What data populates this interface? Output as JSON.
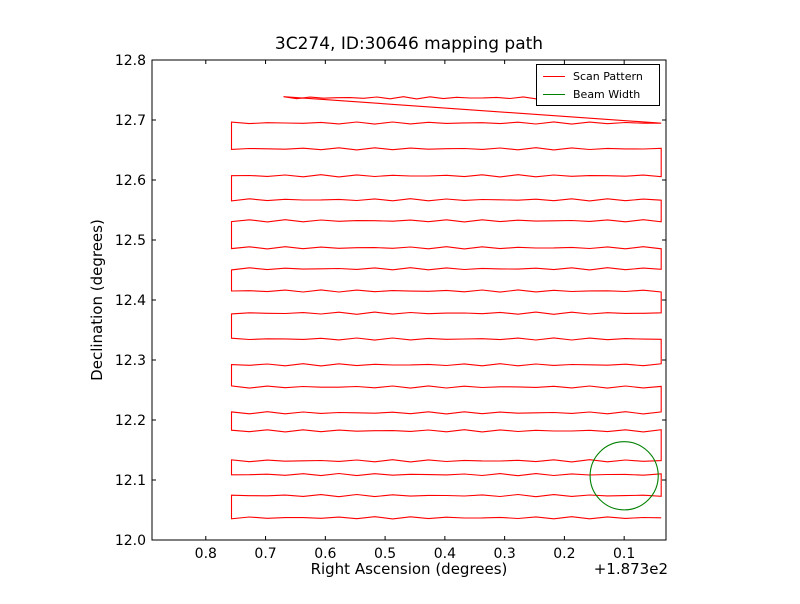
{
  "chart_data": {
    "type": "line",
    "title": "3C274, ID:30646 mapping path",
    "xlabel": "Right Ascension (degrees)",
    "ylabel": "Declination (degrees)",
    "x_offset_text": "+1.873e2",
    "x_axis_inverted": true,
    "xlim": [
      0.89,
      0.03
    ],
    "ylim": [
      12.0,
      12.8
    ],
    "x_ticks": [
      0.8,
      0.7,
      0.6,
      0.5,
      0.4,
      0.3,
      0.2,
      0.1
    ],
    "x_tick_labels": [
      "0.8",
      "0.7",
      "0.6",
      "0.5",
      "0.4",
      "0.3",
      "0.2",
      "0.1"
    ],
    "y_ticks": [
      12.0,
      12.1,
      12.2,
      12.3,
      12.4,
      12.5,
      12.6,
      12.7,
      12.8
    ],
    "y_tick_labels": [
      "12.0",
      "12.1",
      "12.2",
      "12.3",
      "12.4",
      "12.5",
      "12.6",
      "12.7",
      "12.8"
    ],
    "grid": false,
    "legend": {
      "placement": "top-right",
      "entries": [
        "Scan Pattern",
        "Beam Width"
      ]
    },
    "series": [
      {
        "name": "Scan Pattern",
        "color": "#ff0000",
        "x_start": 0.038,
        "x_end": 0.757,
        "rows": [
          12.037,
          12.074,
          12.109,
          12.132,
          12.182,
          12.212,
          12.255,
          12.292,
          12.335,
          12.378,
          12.415,
          12.452,
          12.487,
          12.532,
          12.567,
          12.607,
          12.652,
          12.695,
          12.737
        ],
        "last_row_start": 0.67
      },
      {
        "name": "Beam Width",
        "color": "#008000",
        "center": [
          0.1,
          12.107
        ],
        "radius": 0.057
      }
    ]
  }
}
